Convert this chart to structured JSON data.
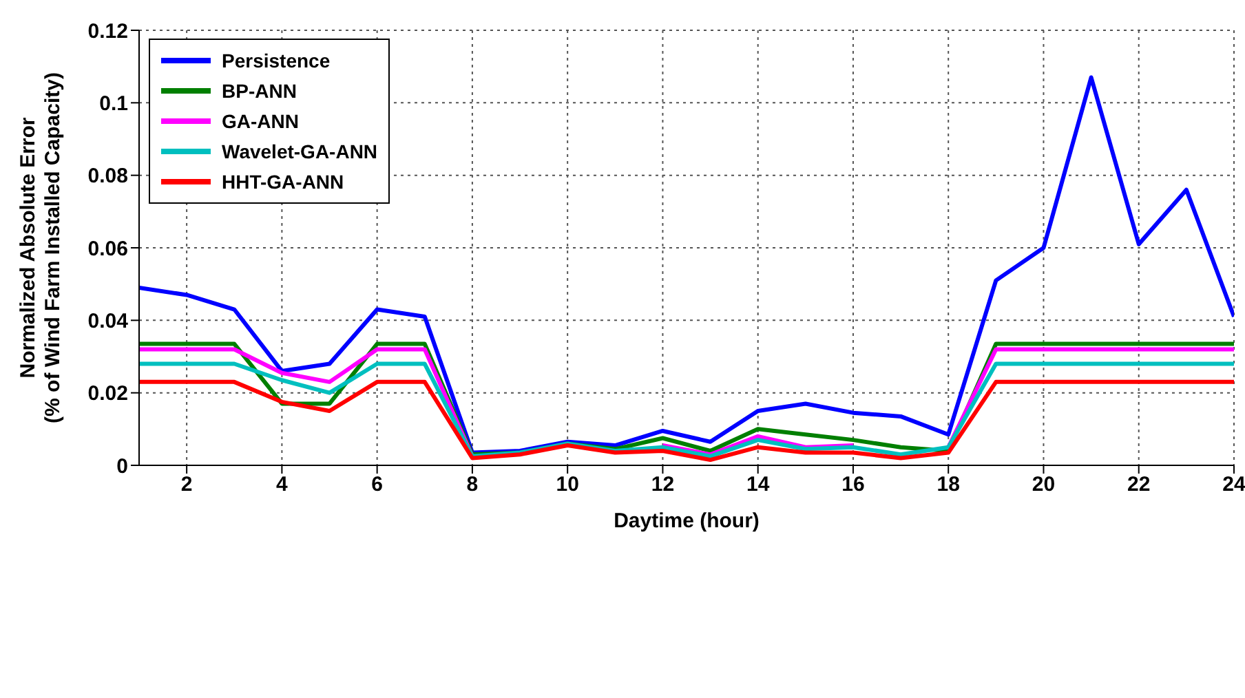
{
  "chart_data": {
    "type": "line",
    "xlabel": "Daytime (hour)",
    "ylabel": "Normalized Absolute Error\n(% of Wind Farm Installed Capacity)",
    "x": [
      1,
      2,
      3,
      4,
      5,
      6,
      7,
      8,
      9,
      10,
      11,
      12,
      13,
      14,
      15,
      16,
      17,
      18,
      19,
      20,
      21,
      22,
      23,
      24
    ],
    "xlim": [
      1,
      24
    ],
    "xticks": [
      2,
      4,
      6,
      8,
      10,
      12,
      14,
      16,
      18,
      20,
      22,
      24
    ],
    "ylim": [
      0,
      0.12
    ],
    "yticks": [
      0,
      0.02,
      0.04,
      0.06,
      0.08,
      0.1,
      0.12
    ],
    "grid": true,
    "legend": "top left",
    "marker": "none",
    "line_style": "solid",
    "series": [
      {
        "name": "Persistence",
        "color": "#0000ff",
        "values": [
          0.049,
          0.047,
          0.043,
          0.026,
          0.028,
          0.043,
          0.041,
          0.0035,
          0.004,
          0.0065,
          0.0055,
          0.0095,
          0.0065,
          0.015,
          0.017,
          0.0145,
          0.0135,
          0.0085,
          0.051,
          0.06,
          0.107,
          0.061,
          0.076,
          0.041
        ]
      },
      {
        "name": "BP-ANN",
        "color": "#007f00",
        "values": [
          0.0335,
          0.0335,
          0.0335,
          0.017,
          0.017,
          0.0335,
          0.0335,
          0.003,
          0.0035,
          0.006,
          0.0045,
          0.0075,
          0.004,
          0.01,
          0.0085,
          0.007,
          0.005,
          0.004,
          0.0335,
          0.0335,
          0.0335,
          0.0335,
          0.0335,
          0.0335
        ]
      },
      {
        "name": "GA-ANN",
        "color": "#ff00ff",
        "values": [
          0.032,
          0.032,
          0.032,
          0.0255,
          0.023,
          0.032,
          0.032,
          0.0025,
          null,
          null,
          null,
          0.0055,
          0.003,
          0.008,
          0.005,
          0.0055,
          null,
          0.005,
          0.032,
          0.032,
          0.032,
          0.032,
          0.032,
          0.032
        ]
      },
      {
        "name": "Wavelet-GA-ANN",
        "color": "#00bfbf",
        "values": [
          0.028,
          0.028,
          0.028,
          0.0235,
          0.02,
          0.028,
          0.028,
          0.0025,
          0.0035,
          0.006,
          0.004,
          0.005,
          0.0025,
          0.007,
          0.0045,
          0.005,
          0.003,
          0.005,
          0.028,
          0.028,
          0.028,
          0.028,
          0.028,
          0.028
        ]
      },
      {
        "name": "HHT-GA-ANN",
        "color": "#ff0000",
        "values": [
          0.023,
          0.023,
          0.023,
          0.0175,
          0.015,
          0.023,
          0.023,
          0.002,
          0.003,
          0.0055,
          0.0035,
          0.004,
          0.0015,
          0.005,
          0.0035,
          0.0035,
          0.002,
          0.0035,
          0.023,
          0.023,
          0.023,
          0.023,
          0.023,
          0.023
        ]
      }
    ]
  }
}
